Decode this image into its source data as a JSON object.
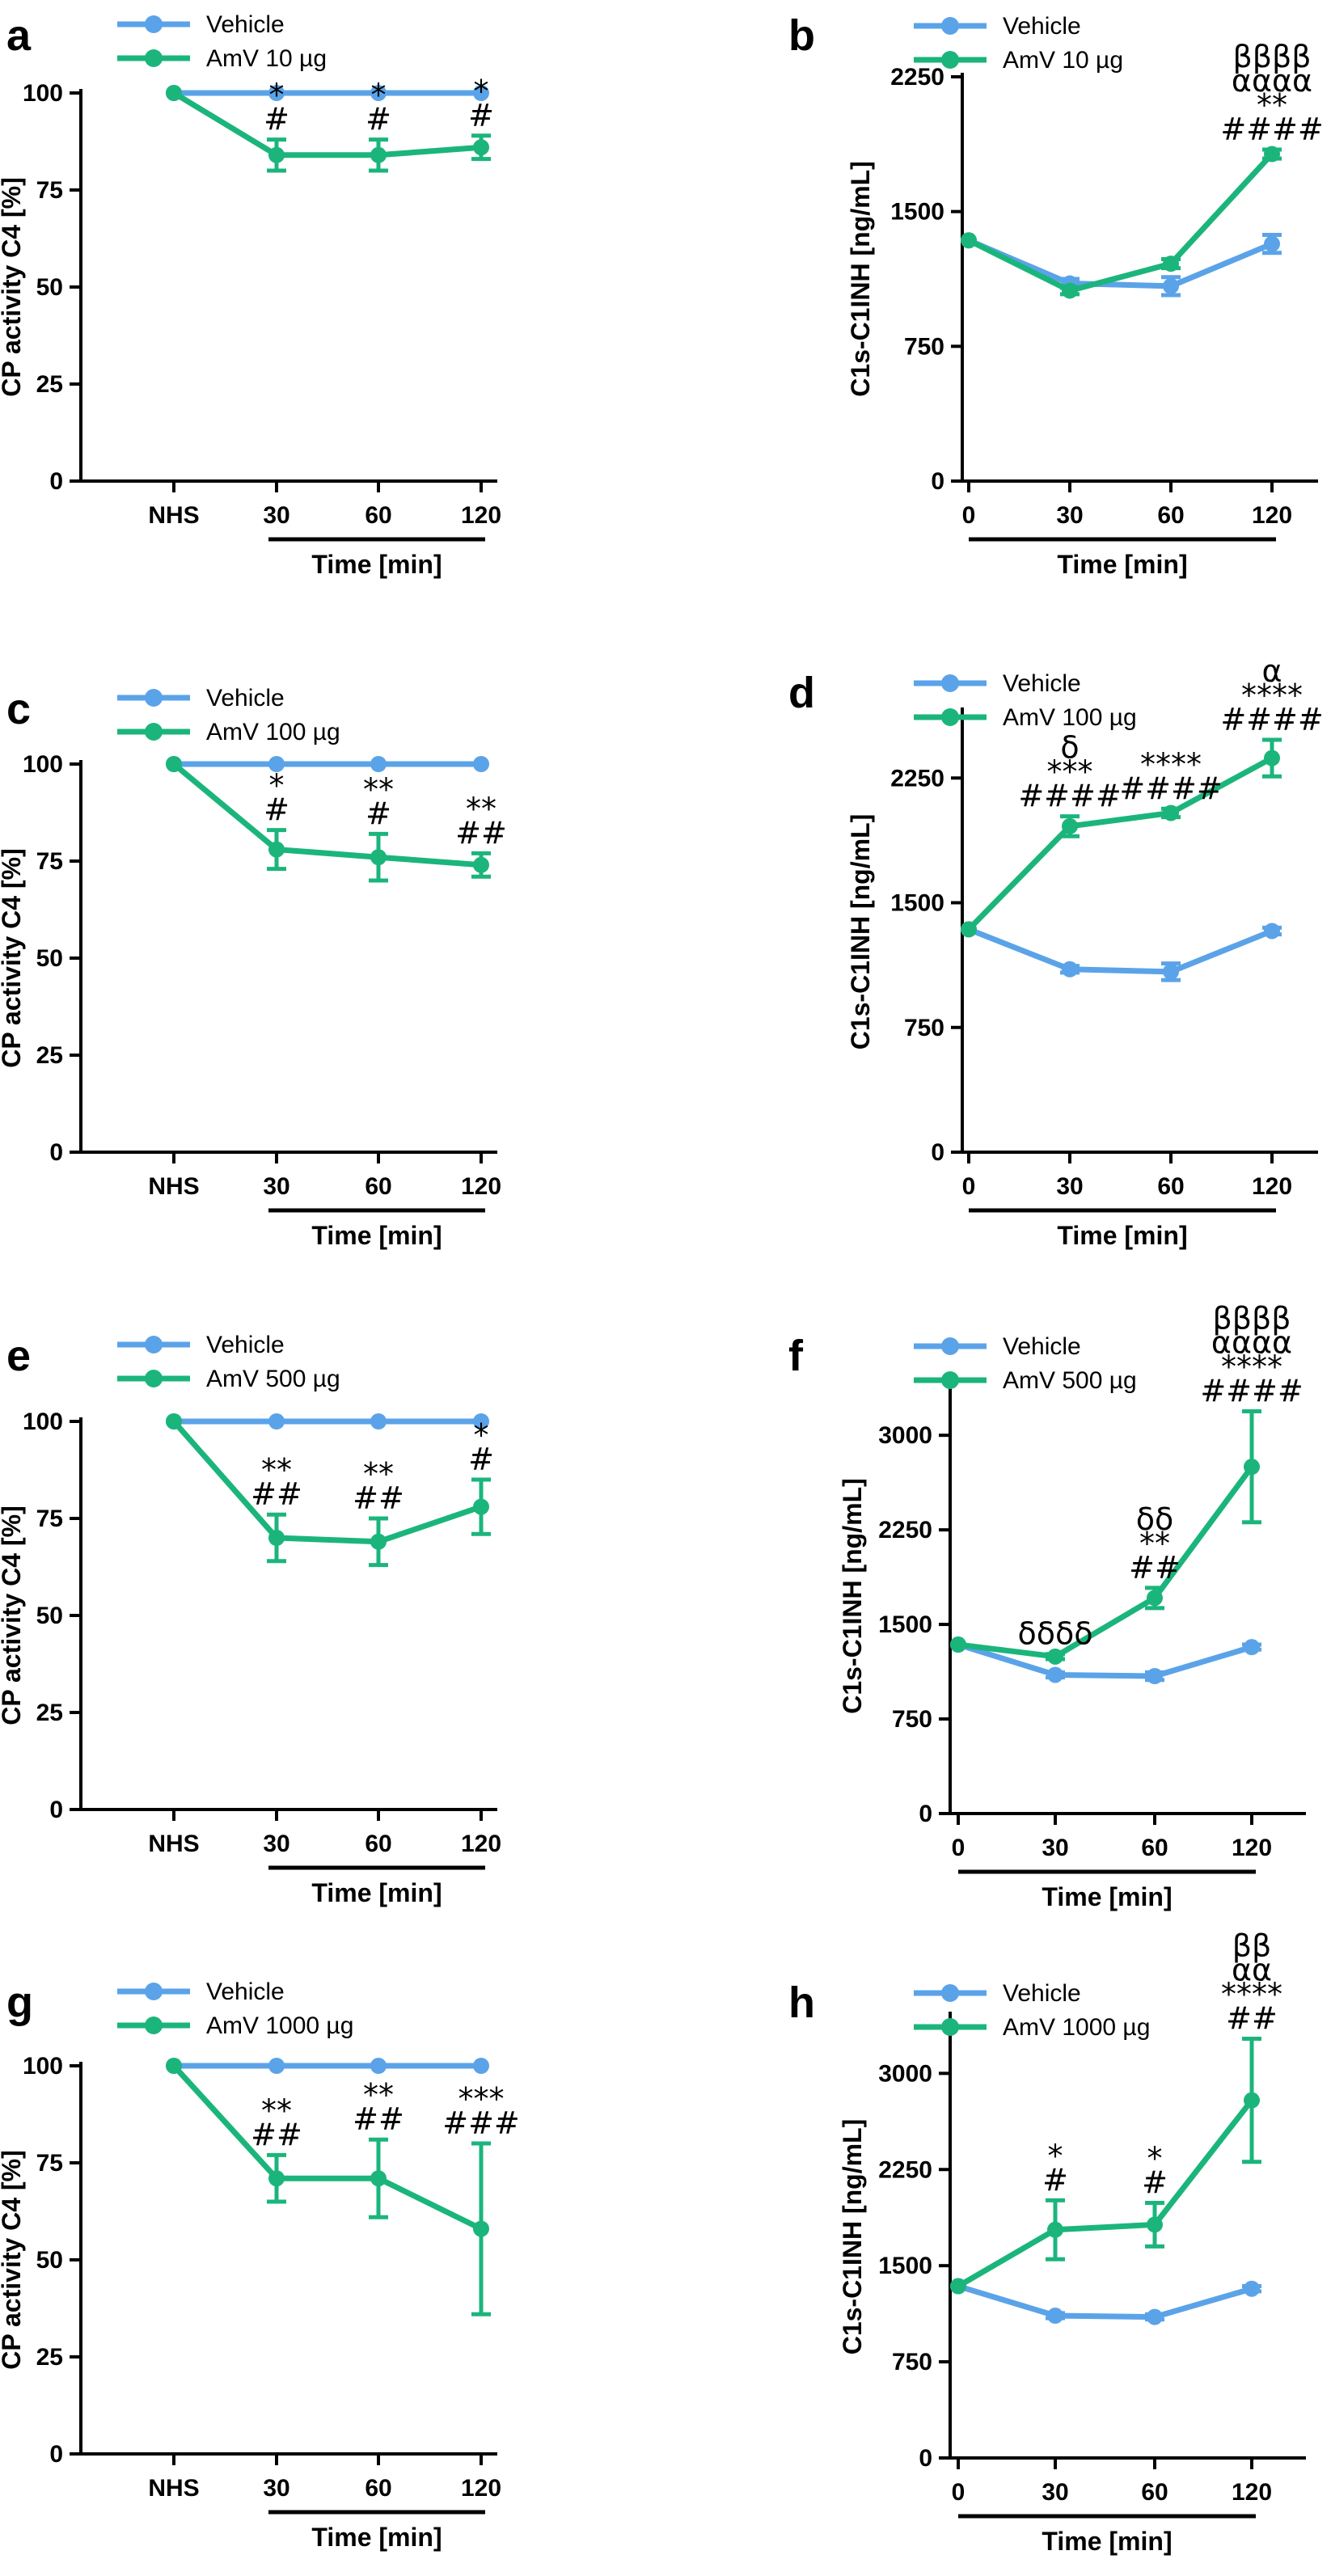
{
  "colors": {
    "vehicle": "#5ba3e8",
    "amv": "#1bb57c",
    "axis": "#000000"
  },
  "chart_data": [
    {
      "panel": "a",
      "type": "line",
      "ylabel": "CP activity C4  [%]",
      "xlabel": "Time [min]",
      "categories": [
        "NHS",
        "30",
        "60",
        "120"
      ],
      "ylim": [
        0,
        100
      ],
      "yticks": [
        "0",
        "25",
        "50",
        "75",
        "100"
      ],
      "ytick_values": [
        0,
        25,
        50,
        75,
        100
      ],
      "series": [
        {
          "name": "Vehicle",
          "values": [
            100,
            100,
            100,
            100
          ],
          "errors": [
            0,
            0,
            0,
            0
          ]
        },
        {
          "name": "AmV 10 µg",
          "values": [
            100,
            84,
            84,
            86
          ],
          "errors": [
            0,
            4,
            4,
            3
          ]
        }
      ],
      "annotations": [
        {
          "index": 1,
          "lines": [
            "*",
            "#"
          ]
        },
        {
          "index": 2,
          "lines": [
            "*",
            "#"
          ]
        },
        {
          "index": 3,
          "lines": [
            "*",
            "#"
          ]
        }
      ]
    },
    {
      "panel": "b",
      "type": "line",
      "ylabel": "C1s-C1INH [ng/mL]",
      "xlabel": "Time [min]",
      "categories": [
        "0",
        "30",
        "60",
        "120"
      ],
      "ylim": [
        0,
        2250
      ],
      "yticks": [
        "0",
        "750",
        "1500",
        "2250"
      ],
      "ytick_values": [
        0,
        750,
        1500,
        2250
      ],
      "series": [
        {
          "name": "Vehicle",
          "values": [
            1340,
            1100,
            1085,
            1320
          ],
          "errors": [
            0,
            25,
            50,
            50
          ]
        },
        {
          "name": "AmV 10 µg",
          "values": [
            1340,
            1060,
            1210,
            1820
          ],
          "errors": [
            0,
            20,
            25,
            25
          ]
        }
      ],
      "annotations": [
        {
          "index": 3,
          "lines": [
            "ββββ",
            "αααα",
            "**",
            "####"
          ]
        }
      ]
    },
    {
      "panel": "c",
      "type": "line",
      "ylabel": "CP activity C4 [%]",
      "xlabel": "Time [min]",
      "categories": [
        "NHS",
        "30",
        "60",
        "120"
      ],
      "ylim": [
        0,
        100
      ],
      "yticks": [
        "0",
        "25",
        "50",
        "75",
        "100"
      ],
      "ytick_values": [
        0,
        25,
        50,
        75,
        100
      ],
      "series": [
        {
          "name": "Vehicle",
          "values": [
            100,
            100,
            100,
            100
          ],
          "errors": [
            0,
            0,
            0,
            0
          ]
        },
        {
          "name": "AmV 100 µg",
          "values": [
            100,
            78,
            76,
            74
          ],
          "errors": [
            0,
            5,
            6,
            3
          ]
        }
      ],
      "annotations": [
        {
          "index": 1,
          "lines": [
            "*",
            "#"
          ]
        },
        {
          "index": 2,
          "lines": [
            "**",
            "#"
          ]
        },
        {
          "index": 3,
          "lines": [
            "**",
            "##"
          ]
        }
      ]
    },
    {
      "panel": "d",
      "type": "line",
      "ylabel": "C1s-C1INH [ng/mL]",
      "xlabel": "Time [min]",
      "categories": [
        "0",
        "30",
        "60",
        "120"
      ],
      "ylim": [
        0,
        2650
      ],
      "yticks": [
        "0",
        "750",
        "1500",
        "2250"
      ],
      "ytick_values": [
        0,
        750,
        1500,
        2250
      ],
      "series": [
        {
          "name": "Vehicle",
          "values": [
            1340,
            1100,
            1085,
            1330
          ],
          "errors": [
            0,
            20,
            50,
            20
          ]
        },
        {
          "name": "AmV 100  µg",
          "values": [
            1340,
            1960,
            2040,
            2370
          ],
          "errors": [
            0,
            60,
            25,
            110
          ]
        }
      ],
      "annotations": [
        {
          "index": 1,
          "lines": [
            "δ",
            "***",
            "####"
          ]
        },
        {
          "index": 2,
          "lines": [
            "****",
            "####"
          ]
        },
        {
          "index": 3,
          "lines": [
            "α",
            "****",
            "####"
          ]
        }
      ]
    },
    {
      "panel": "e",
      "type": "line",
      "ylabel": "CP activity C4  [%]",
      "xlabel": "Time [min]",
      "categories": [
        "NHS",
        "30",
        "60",
        "120"
      ],
      "ylim": [
        0,
        100
      ],
      "yticks": [
        "0",
        "25",
        "50",
        "75",
        "100"
      ],
      "ytick_values": [
        0,
        25,
        50,
        75,
        100
      ],
      "series": [
        {
          "name": "Vehicle",
          "values": [
            100,
            100,
            100,
            100
          ],
          "errors": [
            0,
            0,
            0,
            0
          ]
        },
        {
          "name": "AmV 500 µg",
          "values": [
            100,
            70,
            69,
            78
          ],
          "errors": [
            0,
            6,
            6,
            7
          ]
        }
      ],
      "annotations": [
        {
          "index": 1,
          "lines": [
            "**",
            "##"
          ]
        },
        {
          "index": 2,
          "lines": [
            "**",
            "##"
          ]
        },
        {
          "index": 3,
          "lines": [
            "*",
            "#"
          ]
        }
      ]
    },
    {
      "panel": "f",
      "type": "line",
      "ylabel": "C1s-C1INH [ng/mL]",
      "xlabel": "Time [min]",
      "categories": [
        "0",
        "30",
        "60",
        "120"
      ],
      "ylim": [
        0,
        3450
      ],
      "yticks": [
        "0",
        "750",
        "1500",
        "2250",
        "3000"
      ],
      "ytick_values": [
        0,
        750,
        1500,
        2250,
        3000
      ],
      "series": [
        {
          "name": "Vehicle",
          "values": [
            1340,
            1100,
            1090,
            1320
          ],
          "errors": [
            0,
            20,
            30,
            20
          ]
        },
        {
          "name": "AmV 500 µg",
          "values": [
            1340,
            1245,
            1710,
            2750
          ],
          "errors": [
            0,
            20,
            80,
            440
          ]
        }
      ],
      "annotations": [
        {
          "index": 1,
          "lines": [
            "δδδδ"
          ]
        },
        {
          "index": 2,
          "lines": [
            "δδ",
            "**",
            "##"
          ]
        },
        {
          "index": 3,
          "lines": [
            "ββββ",
            "αααα",
            "****",
            "####"
          ]
        }
      ]
    },
    {
      "panel": "g",
      "type": "line",
      "ylabel": "CP activity C4 [%]",
      "xlabel": "Time [min]",
      "categories": [
        "NHS",
        "30",
        "60",
        "120"
      ],
      "ylim": [
        0,
        100
      ],
      "yticks": [
        "0",
        "25",
        "50",
        "75",
        "100"
      ],
      "ytick_values": [
        0,
        25,
        50,
        75,
        100
      ],
      "series": [
        {
          "name": "Vehicle",
          "values": [
            100,
            100,
            100,
            100
          ],
          "errors": [
            0,
            0,
            0,
            0
          ]
        },
        {
          "name": "AmV 1000 µg",
          "values": [
            100,
            71,
            71,
            58
          ],
          "errors": [
            0,
            6,
            10,
            22
          ]
        }
      ],
      "annotations": [
        {
          "index": 1,
          "lines": [
            "**",
            "##"
          ]
        },
        {
          "index": 2,
          "lines": [
            "**",
            "##"
          ]
        },
        {
          "index": 3,
          "lines": [
            "***",
            "###"
          ]
        }
      ]
    },
    {
      "panel": "h",
      "type": "line",
      "ylabel": "C1s-C1INH [ng/mL]",
      "xlabel": "Time [min]",
      "categories": [
        "0",
        "30",
        "60",
        "120"
      ],
      "ylim": [
        0,
        3450
      ],
      "yticks": [
        "0",
        "750",
        "1500",
        "2250",
        "3000"
      ],
      "ytick_values": [
        0,
        750,
        1500,
        2250,
        3000
      ],
      "series": [
        {
          "name": "Vehicle",
          "values": [
            1340,
            1110,
            1100,
            1320
          ],
          "errors": [
            0,
            20,
            20,
            20
          ]
        },
        {
          "name": "AmV 1000 µg",
          "values": [
            1340,
            1780,
            1820,
            2790
          ],
          "errors": [
            0,
            230,
            170,
            480
          ]
        }
      ],
      "annotations": [
        {
          "index": 1,
          "lines": [
            "*",
            "#"
          ]
        },
        {
          "index": 2,
          "lines": [
            "*",
            "#"
          ]
        },
        {
          "index": 3,
          "lines": [
            "ββ",
            "αα",
            "****",
            "##"
          ]
        }
      ]
    }
  ]
}
